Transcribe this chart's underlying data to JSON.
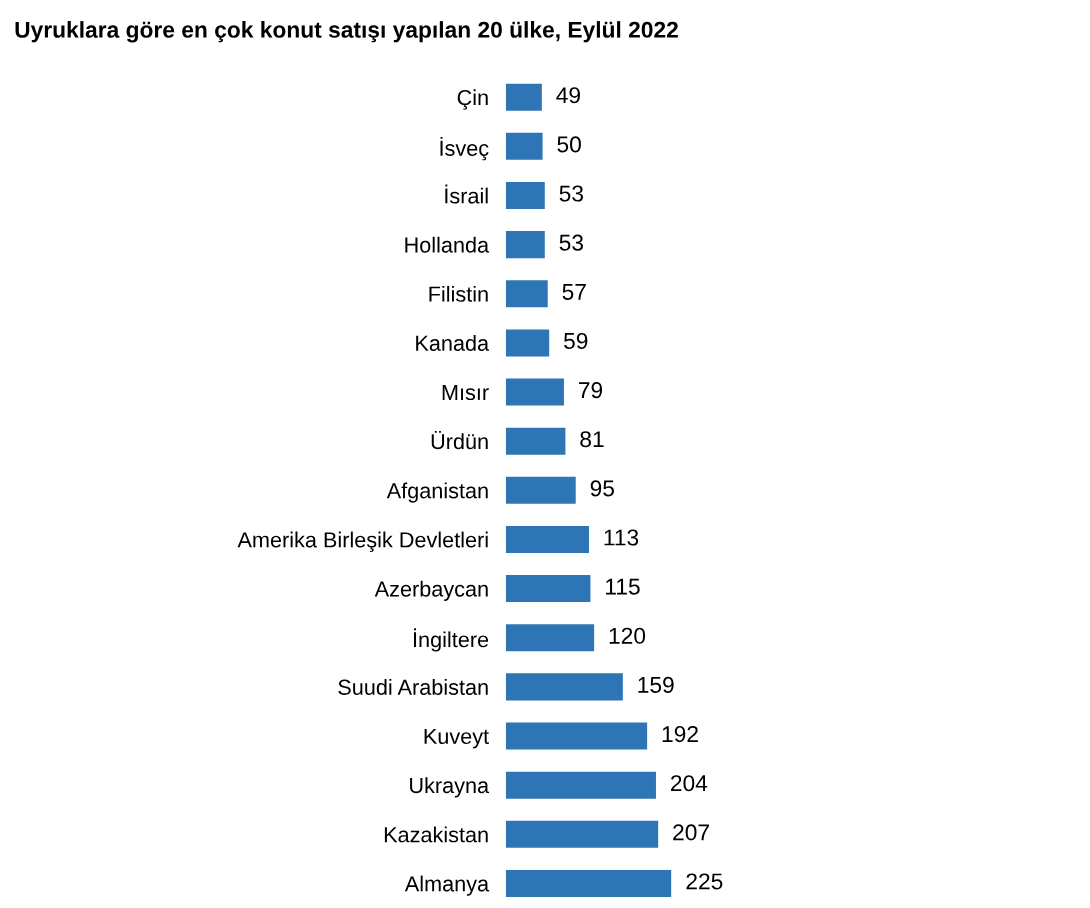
{
  "chart_data": {
    "type": "bar",
    "orientation": "horizontal",
    "title": "Uyruklara göre en çok konut satışı yapılan 20 ülke, Eylül 2022",
    "categories": [
      "Çin",
      "İsveç",
      "İsrail",
      "Hollanda",
      "Filistin",
      "Kanada",
      "Mısır",
      "Ürdün",
      "Afganistan",
      "Amerika Birleşik Devletleri",
      "Azerbaycan",
      "İngiltere",
      "Suudi Arabistan",
      "Kuveyt",
      "Ukrayna",
      "Kazakistan",
      "Almanya"
    ],
    "values": [
      49,
      50,
      53,
      53,
      57,
      59,
      79,
      81,
      95,
      113,
      115,
      120,
      159,
      192,
      204,
      207,
      225
    ],
    "color": "#2e75b6",
    "data_labels": true,
    "grid": false,
    "legend": false
  }
}
